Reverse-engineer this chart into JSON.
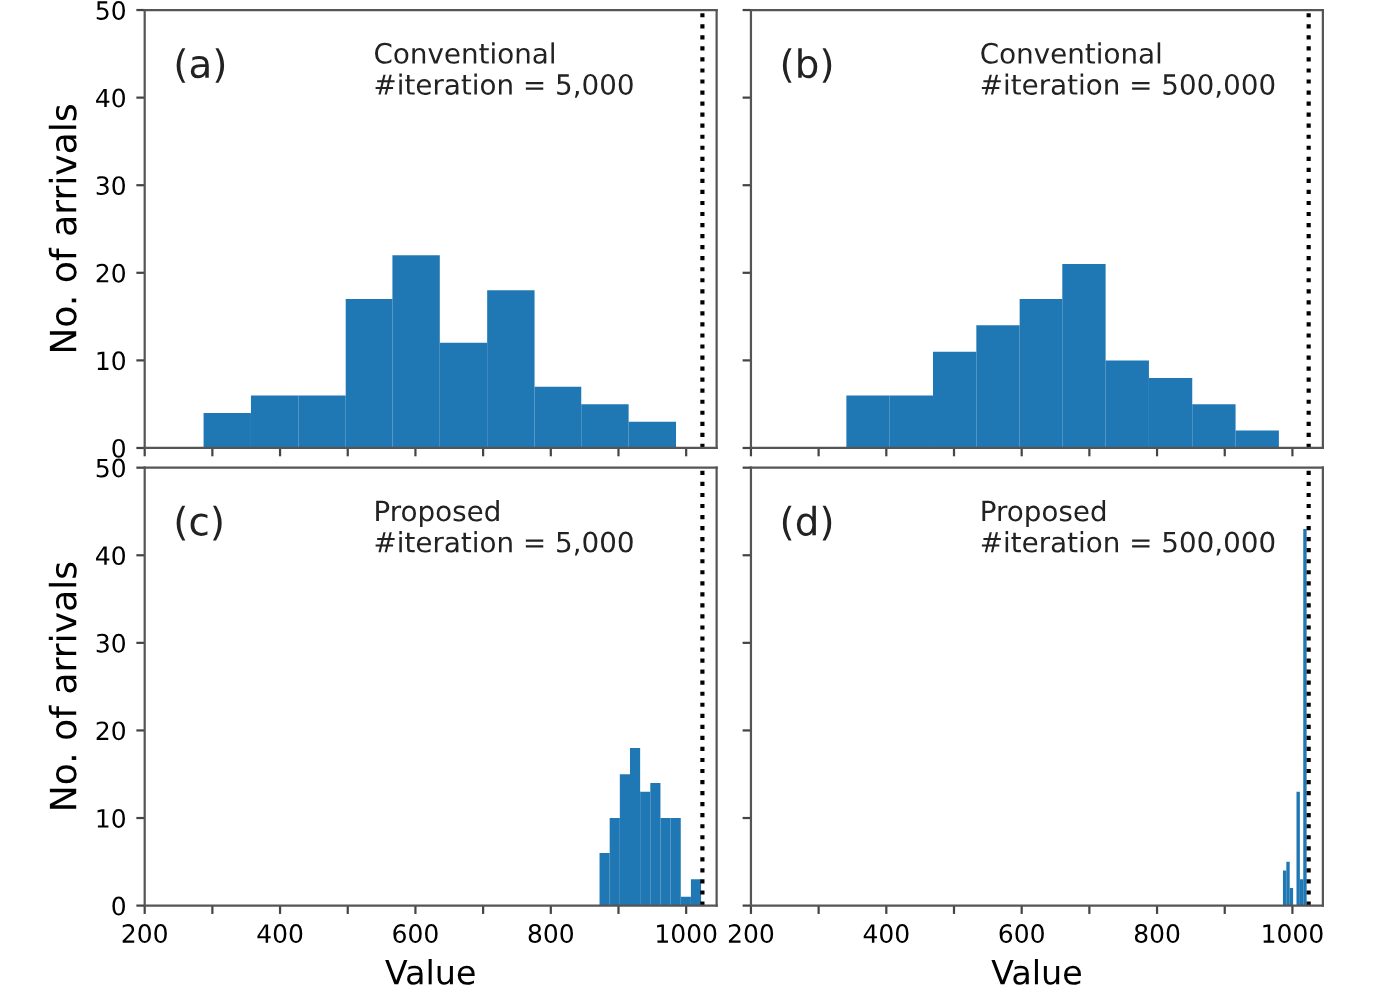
{
  "chart_data": [
    {
      "type": "histogram",
      "bins": [
        287,
        357,
        427,
        497,
        566,
        636,
        706,
        776,
        845,
        915,
        985
      ],
      "values": [
        4,
        6,
        6,
        17,
        22,
        12,
        18,
        7,
        5,
        3
      ],
      "color": "#1f77b4",
      "xlim": [
        200,
        1045
      ],
      "ylim": [
        0,
        50
      ],
      "xticks": [
        {
          "value": 200,
          "label": null
        },
        {
          "value": 300,
          "label": null
        },
        {
          "value": 400,
          "label": null
        },
        {
          "value": 500,
          "label": null
        },
        {
          "value": 600,
          "label": null
        },
        {
          "value": 700,
          "label": null
        },
        {
          "value": 800,
          "label": null
        },
        {
          "value": 900,
          "label": null
        },
        {
          "value": 1000,
          "label": null
        }
      ],
      "yticks": [
        0,
        10,
        20,
        30,
        40,
        50
      ],
      "ylabel": "No. of arrivals",
      "tick_labels": "y",
      "grid": false,
      "ref_lines": [
        {
          "axis": "x",
          "value": 1024,
          "color": "#000000",
          "line_style": "dotted"
        }
      ],
      "annotations": [
        "(a)",
        "Conventional\n#iteration = 5,000"
      ]
    },
    {
      "type": "histogram",
      "bins": [
        341,
        405,
        469,
        533,
        597,
        660,
        724,
        788,
        852,
        916,
        980
      ],
      "values": [
        6,
        6,
        11,
        14,
        17,
        21,
        10,
        8,
        5,
        2
      ],
      "color": "#1f77b4",
      "xlim": [
        200,
        1045
      ],
      "ylim": [
        0,
        50
      ],
      "xticks": [
        {
          "value": 200,
          "label": null
        },
        {
          "value": 300,
          "label": null
        },
        {
          "value": 400,
          "label": null
        },
        {
          "value": 500,
          "label": null
        },
        {
          "value": 600,
          "label": null
        },
        {
          "value": 700,
          "label": null
        },
        {
          "value": 800,
          "label": null
        },
        {
          "value": 900,
          "label": null
        },
        {
          "value": 1000,
          "label": null
        }
      ],
      "yticks": [
        {
          "value": 0,
          "label": null
        },
        {
          "value": 10,
          "label": null
        },
        {
          "value": 20,
          "label": null
        },
        {
          "value": 30,
          "label": null
        },
        {
          "value": 40,
          "label": null
        },
        {
          "value": 50,
          "label": null
        }
      ],
      "tick_labels": false,
      "grid": false,
      "ref_lines": [
        {
          "axis": "x",
          "value": 1024,
          "color": "#000000",
          "line_style": "dotted"
        }
      ],
      "annotations": [
        "(b)",
        "Conventional\n#iteration = 500,000"
      ]
    },
    {
      "type": "histogram",
      "bins": [
        872,
        887,
        902,
        917,
        932,
        947,
        962,
        977,
        992,
        1007,
        1022
      ],
      "values": [
        6,
        10,
        15,
        18,
        13,
        14,
        10,
        10,
        1,
        3
      ],
      "color": "#1f77b4",
      "xlim": [
        200,
        1045
      ],
      "ylim": [
        0,
        50
      ],
      "xticks": [
        {
          "value": 200,
          "label": "200"
        },
        {
          "value": 300,
          "label": null
        },
        {
          "value": 400,
          "label": "400"
        },
        {
          "value": 500,
          "label": null
        },
        {
          "value": 600,
          "label": "600"
        },
        {
          "value": 700,
          "label": null
        },
        {
          "value": 800,
          "label": "800"
        },
        {
          "value": 900,
          "label": null
        },
        {
          "value": 1000,
          "label": "1000"
        }
      ],
      "yticks": [
        0,
        10,
        20,
        30,
        40,
        50
      ],
      "ylabel": "No. of arrivals",
      "xlabel": "Value",
      "grid": false,
      "ref_lines": [
        {
          "axis": "x",
          "value": 1024,
          "color": "#000000",
          "line_style": "dotted"
        }
      ],
      "annotations": [
        "(c)",
        "Proposed\n#iteration = 5,000"
      ]
    },
    {
      "type": "histogram",
      "bins": [
        986,
        991,
        996,
        1001,
        1006,
        1011,
        1016,
        1021
      ],
      "values": [
        4,
        5,
        2,
        0,
        13,
        3,
        43
      ],
      "color": "#1f77b4",
      "xlim": [
        200,
        1045
      ],
      "ylim": [
        0,
        50
      ],
      "xticks": [
        {
          "value": 200,
          "label": "200"
        },
        {
          "value": 300,
          "label": null
        },
        {
          "value": 400,
          "label": "400"
        },
        {
          "value": 500,
          "label": null
        },
        {
          "value": 600,
          "label": "600"
        },
        {
          "value": 700,
          "label": null
        },
        {
          "value": 800,
          "label": "800"
        },
        {
          "value": 900,
          "label": null
        },
        {
          "value": 1000,
          "label": "1000"
        }
      ],
      "yticks": [
        {
          "value": 0,
          "label": null
        },
        {
          "value": 10,
          "label": null
        },
        {
          "value": 20,
          "label": null
        },
        {
          "value": 30,
          "label": null
        },
        {
          "value": 40,
          "label": null
        },
        {
          "value": 50,
          "label": null
        }
      ],
      "xlabel": "Value",
      "tick_labels": "x",
      "grid": false,
      "ref_lines": [
        {
          "axis": "x",
          "value": 1024,
          "color": "#000000",
          "line_style": "dotted"
        }
      ],
      "annotations": [
        "(d)",
        "Proposed\n#iteration = 500,000"
      ]
    }
  ]
}
